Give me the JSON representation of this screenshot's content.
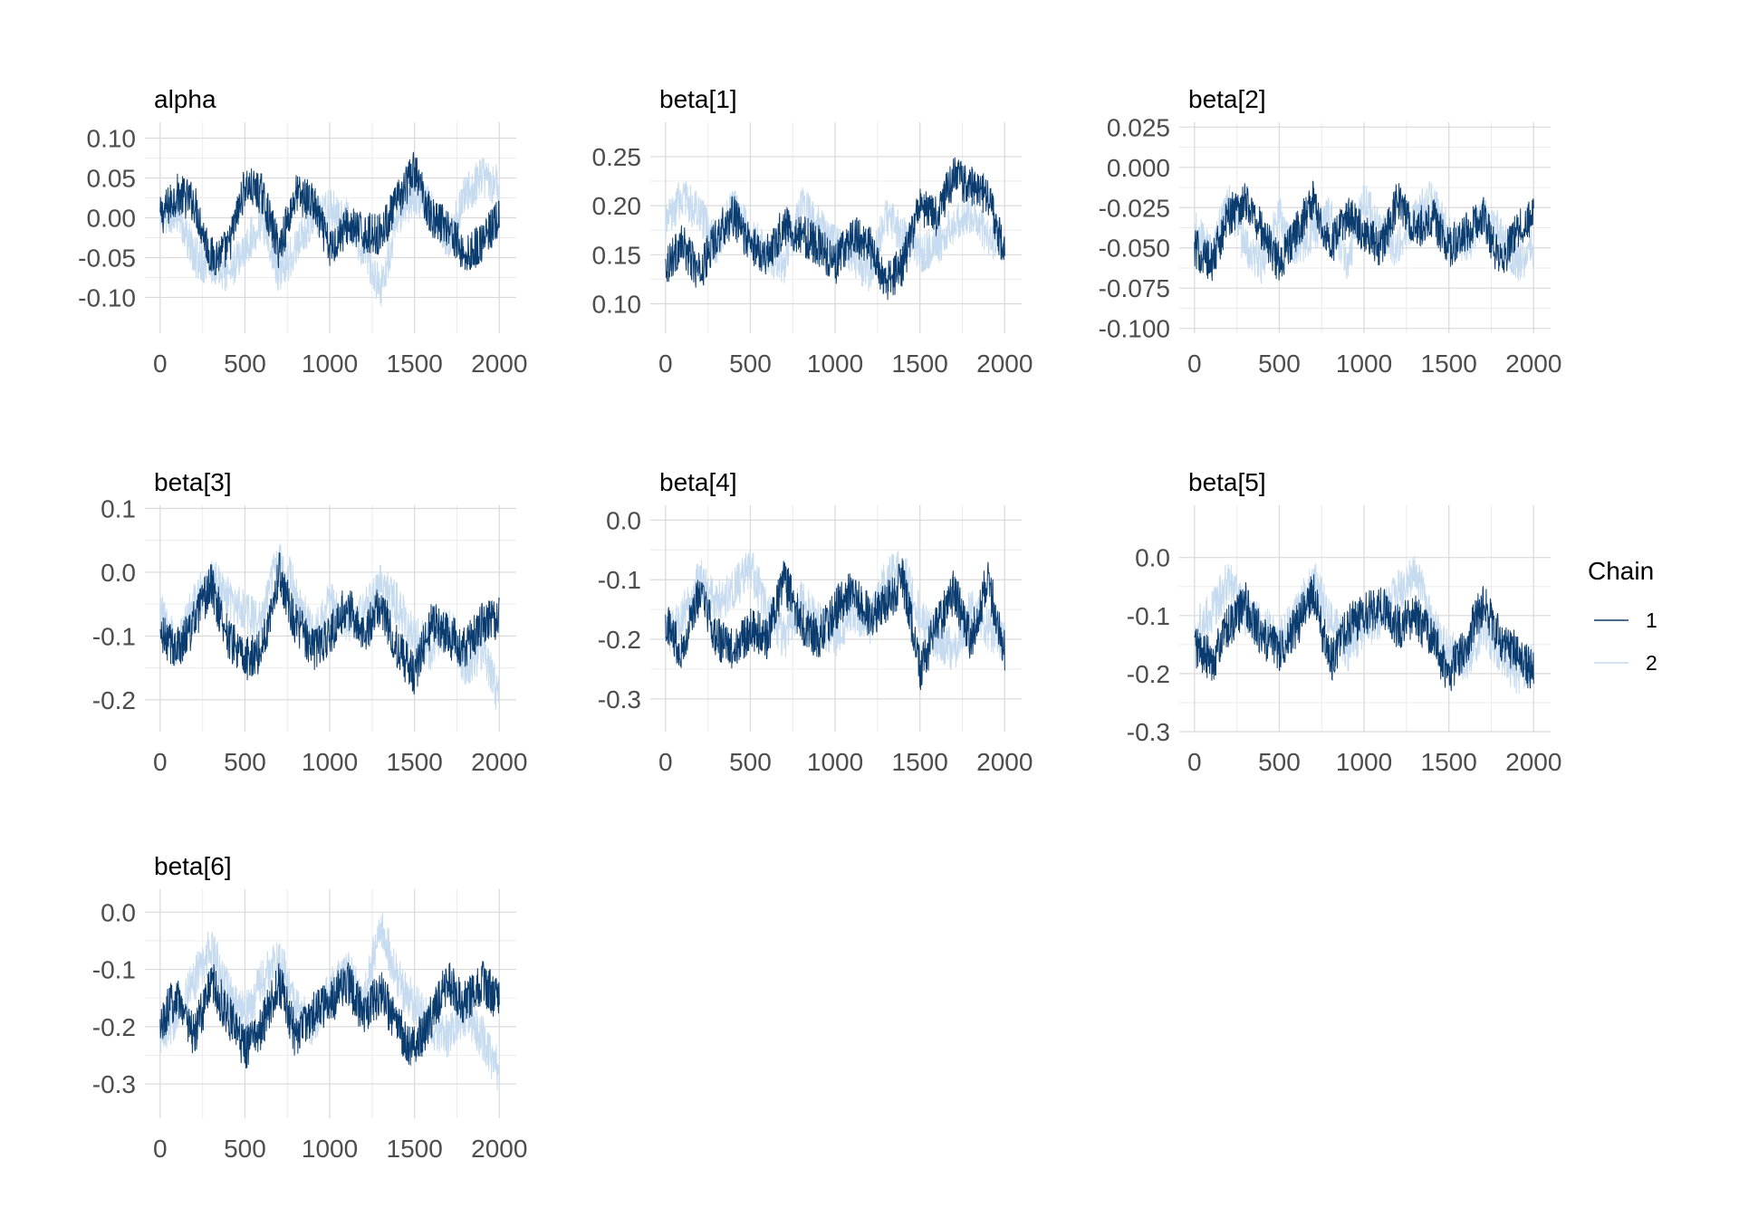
{
  "colors": {
    "chain1": "#0b3c6f",
    "chain2": "#c6dbef",
    "grid": "#d9d9d9",
    "tick_text": "#4d4d4d"
  },
  "legend": {
    "title": "Chain",
    "items": [
      {
        "label": "1",
        "color": "#0b3c6f"
      },
      {
        "label": "2",
        "color": "#c6dbef"
      }
    ],
    "placement": "right"
  },
  "chart_data": [
    {
      "type": "line",
      "title": "alpha",
      "xlim": [
        -90,
        2100
      ],
      "ylim": [
        -0.145,
        0.12
      ],
      "xticks": [
        0,
        500,
        1000,
        1500,
        2000
      ],
      "xtick_labels": [
        "0",
        "500",
        "1000",
        "1500",
        "2000"
      ],
      "yticks": [
        -0.1,
        -0.05,
        0.0,
        0.05,
        0.1
      ],
      "ytick_labels": [
        "-0.10",
        "-0.05",
        "0.00",
        "0.05",
        "0.10"
      ],
      "grid": true,
      "x": [
        0,
        100,
        200,
        300,
        400,
        500,
        600,
        700,
        800,
        900,
        1000,
        1100,
        1200,
        1300,
        1400,
        1500,
        1600,
        1700,
        1800,
        1900,
        2000
      ],
      "series": [
        {
          "name": "1",
          "values": [
            0.0,
            0.03,
            0.02,
            -0.05,
            -0.04,
            0.04,
            0.03,
            -0.04,
            0.03,
            0.02,
            -0.04,
            -0.01,
            -0.02,
            -0.02,
            0.02,
            0.06,
            0.0,
            -0.01,
            -0.05,
            -0.03,
            0.0
          ]
        },
        {
          "name": "2",
          "values": [
            0.0,
            0.01,
            -0.05,
            -0.06,
            -0.07,
            -0.04,
            0.0,
            -0.07,
            -0.04,
            0.0,
            0.01,
            0.0,
            -0.04,
            -0.09,
            0.0,
            0.03,
            0.01,
            -0.03,
            0.03,
            0.05,
            0.04
          ]
        }
      ]
    },
    {
      "type": "line",
      "title": "beta[1]",
      "xlim": [
        -90,
        2100
      ],
      "ylim": [
        0.07,
        0.285
      ],
      "xticks": [
        0,
        500,
        1000,
        1500,
        2000
      ],
      "xtick_labels": [
        "0",
        "500",
        "1000",
        "1500",
        "2000"
      ],
      "yticks": [
        0.1,
        0.15,
        0.2,
        0.25
      ],
      "ytick_labels": [
        "0.10",
        "0.15",
        "0.20",
        "0.25"
      ],
      "grid": true,
      "x": [
        0,
        100,
        200,
        300,
        400,
        500,
        600,
        700,
        800,
        900,
        1000,
        1100,
        1200,
        1300,
        1400,
        1500,
        1600,
        1700,
        1800,
        1900,
        2000
      ],
      "series": [
        {
          "name": "1",
          "values": [
            0.14,
            0.16,
            0.13,
            0.17,
            0.19,
            0.16,
            0.15,
            0.18,
            0.17,
            0.16,
            0.14,
            0.17,
            0.16,
            0.12,
            0.14,
            0.2,
            0.19,
            0.23,
            0.22,
            0.21,
            0.15
          ]
        },
        {
          "name": "2",
          "values": [
            0.18,
            0.21,
            0.19,
            0.16,
            0.2,
            0.17,
            0.15,
            0.14,
            0.2,
            0.18,
            0.16,
            0.15,
            0.13,
            0.19,
            0.17,
            0.15,
            0.16,
            0.18,
            0.19,
            0.17,
            0.16
          ]
        }
      ]
    },
    {
      "type": "line",
      "title": "beta[2]",
      "xlim": [
        -90,
        2100
      ],
      "ylim": [
        -0.103,
        0.028
      ],
      "xticks": [
        0,
        500,
        1000,
        1500,
        2000
      ],
      "xtick_labels": [
        "0",
        "500",
        "1000",
        "1500",
        "2000"
      ],
      "yticks": [
        -0.1,
        -0.075,
        -0.05,
        -0.025,
        0.0,
        0.025
      ],
      "ytick_labels": [
        "-0.100",
        "-0.075",
        "-0.050",
        "-0.025",
        "0.000",
        "0.025"
      ],
      "grid": true,
      "x": [
        0,
        100,
        200,
        300,
        400,
        500,
        600,
        700,
        800,
        900,
        1000,
        1100,
        1200,
        1300,
        1400,
        1500,
        1600,
        1700,
        1800,
        1900,
        2000
      ],
      "series": [
        {
          "name": "1",
          "values": [
            -0.05,
            -0.06,
            -0.03,
            -0.02,
            -0.04,
            -0.06,
            -0.04,
            -0.02,
            -0.05,
            -0.03,
            -0.04,
            -0.05,
            -0.02,
            -0.04,
            -0.03,
            -0.05,
            -0.04,
            -0.03,
            -0.06,
            -0.04,
            -0.03
          ]
        },
        {
          "name": "2",
          "values": [
            -0.04,
            -0.05,
            -0.02,
            -0.05,
            -0.06,
            -0.03,
            -0.05,
            -0.04,
            -0.03,
            -0.06,
            -0.02,
            -0.04,
            -0.05,
            -0.03,
            -0.02,
            -0.04,
            -0.05,
            -0.03,
            -0.04,
            -0.06,
            -0.05
          ]
        }
      ]
    },
    {
      "type": "line",
      "title": "beta[3]",
      "xlim": [
        -90,
        2100
      ],
      "ylim": [
        -0.25,
        0.105
      ],
      "xticks": [
        0,
        500,
        1000,
        1500,
        2000
      ],
      "xtick_labels": [
        "0",
        "500",
        "1000",
        "1500",
        "2000"
      ],
      "yticks": [
        -0.2,
        -0.1,
        0.0,
        0.1
      ],
      "ytick_labels": [
        "-0.2",
        "-0.1",
        "0.0",
        "0.1"
      ],
      "grid": true,
      "x": [
        0,
        100,
        200,
        300,
        400,
        500,
        600,
        700,
        800,
        900,
        1000,
        1100,
        1200,
        1300,
        1400,
        1500,
        1600,
        1700,
        1800,
        1900,
        2000
      ],
      "series": [
        {
          "name": "1",
          "values": [
            -0.1,
            -0.12,
            -0.08,
            -0.02,
            -0.1,
            -0.14,
            -0.12,
            0.0,
            -0.08,
            -0.12,
            -0.1,
            -0.05,
            -0.1,
            -0.05,
            -0.12,
            -0.16,
            -0.08,
            -0.1,
            -0.12,
            -0.08,
            -0.07
          ]
        },
        {
          "name": "2",
          "values": [
            -0.06,
            -0.12,
            -0.05,
            -0.01,
            -0.04,
            -0.06,
            -0.08,
            0.03,
            -0.03,
            -0.1,
            -0.05,
            -0.08,
            -0.06,
            -0.02,
            -0.05,
            -0.1,
            -0.12,
            -0.08,
            -0.15,
            -0.12,
            -0.2
          ]
        }
      ]
    },
    {
      "type": "line",
      "title": "beta[4]",
      "xlim": [
        -90,
        2100
      ],
      "ylim": [
        -0.355,
        0.025
      ],
      "xticks": [
        0,
        500,
        1000,
        1500,
        2000
      ],
      "xtick_labels": [
        "0",
        "500",
        "1000",
        "1500",
        "2000"
      ],
      "yticks": [
        -0.3,
        -0.2,
        -0.1,
        0.0
      ],
      "ytick_labels": [
        "-0.3",
        "-0.2",
        "-0.1",
        "0.0"
      ],
      "grid": true,
      "x": [
        0,
        100,
        200,
        300,
        400,
        500,
        600,
        700,
        800,
        900,
        1000,
        1100,
        1200,
        1300,
        1400,
        1500,
        1600,
        1700,
        1800,
        1900,
        2000
      ],
      "series": [
        {
          "name": "1",
          "values": [
            -0.17,
            -0.22,
            -0.12,
            -0.2,
            -0.22,
            -0.18,
            -0.2,
            -0.1,
            -0.17,
            -0.2,
            -0.15,
            -0.12,
            -0.16,
            -0.14,
            -0.1,
            -0.25,
            -0.18,
            -0.12,
            -0.2,
            -0.1,
            -0.22
          ]
        },
        {
          "name": "2",
          "values": [
            -0.2,
            -0.16,
            -0.1,
            -0.14,
            -0.12,
            -0.08,
            -0.15,
            -0.2,
            -0.13,
            -0.17,
            -0.2,
            -0.15,
            -0.18,
            -0.1,
            -0.08,
            -0.16,
            -0.2,
            -0.22,
            -0.15,
            -0.18,
            -0.2
          ]
        }
      ]
    },
    {
      "type": "line",
      "title": "beta[5]",
      "xlim": [
        -90,
        2100
      ],
      "ylim": [
        -0.3,
        0.09
      ],
      "xticks": [
        0,
        500,
        1000,
        1500,
        2000
      ],
      "xtick_labels": [
        "0",
        "500",
        "1000",
        "1500",
        "2000"
      ],
      "yticks": [
        -0.3,
        -0.2,
        -0.1,
        0.0
      ],
      "ytick_labels": [
        "-0.3",
        "-0.2",
        "-0.1",
        "0.0"
      ],
      "grid": true,
      "x": [
        0,
        100,
        200,
        300,
        400,
        500,
        600,
        700,
        800,
        900,
        1000,
        1100,
        1200,
        1300,
        1400,
        1500,
        1600,
        1700,
        1800,
        1900,
        2000
      ],
      "series": [
        {
          "name": "1",
          "values": [
            -0.15,
            -0.18,
            -0.12,
            -0.08,
            -0.14,
            -0.16,
            -0.12,
            -0.06,
            -0.18,
            -0.12,
            -0.1,
            -0.08,
            -0.12,
            -0.1,
            -0.14,
            -0.2,
            -0.15,
            -0.08,
            -0.14,
            -0.16,
            -0.2
          ]
        },
        {
          "name": "2",
          "values": [
            -0.12,
            -0.1,
            -0.04,
            -0.1,
            -0.12,
            -0.14,
            -0.1,
            -0.04,
            -0.1,
            -0.16,
            -0.12,
            -0.1,
            -0.06,
            -0.02,
            -0.12,
            -0.16,
            -0.18,
            -0.12,
            -0.16,
            -0.2,
            -0.18
          ]
        }
      ]
    },
    {
      "type": "line",
      "title": "beta[6]",
      "xlim": [
        -90,
        2100
      ],
      "ylim": [
        -0.36,
        0.04
      ],
      "xticks": [
        0,
        500,
        1000,
        1500,
        2000
      ],
      "xtick_labels": [
        "0",
        "500",
        "1000",
        "1500",
        "2000"
      ],
      "yticks": [
        -0.3,
        -0.2,
        -0.1,
        0.0
      ],
      "ytick_labels": [
        "-0.3",
        "-0.2",
        "-0.1",
        "0.0"
      ],
      "grid": true,
      "x": [
        0,
        100,
        200,
        300,
        400,
        500,
        600,
        700,
        800,
        900,
        1000,
        1100,
        1200,
        1300,
        1400,
        1500,
        1600,
        1700,
        1800,
        1900,
        2000
      ],
      "series": [
        {
          "name": "1",
          "values": [
            -0.2,
            -0.14,
            -0.22,
            -0.12,
            -0.18,
            -0.24,
            -0.2,
            -0.12,
            -0.22,
            -0.18,
            -0.16,
            -0.12,
            -0.18,
            -0.14,
            -0.2,
            -0.24,
            -0.18,
            -0.12,
            -0.16,
            -0.12,
            -0.16
          ]
        },
        {
          "name": "2",
          "values": [
            -0.22,
            -0.18,
            -0.12,
            -0.06,
            -0.14,
            -0.18,
            -0.12,
            -0.08,
            -0.16,
            -0.2,
            -0.14,
            -0.1,
            -0.16,
            -0.02,
            -0.12,
            -0.16,
            -0.2,
            -0.22,
            -0.18,
            -0.22,
            -0.28
          ]
        }
      ]
    }
  ]
}
